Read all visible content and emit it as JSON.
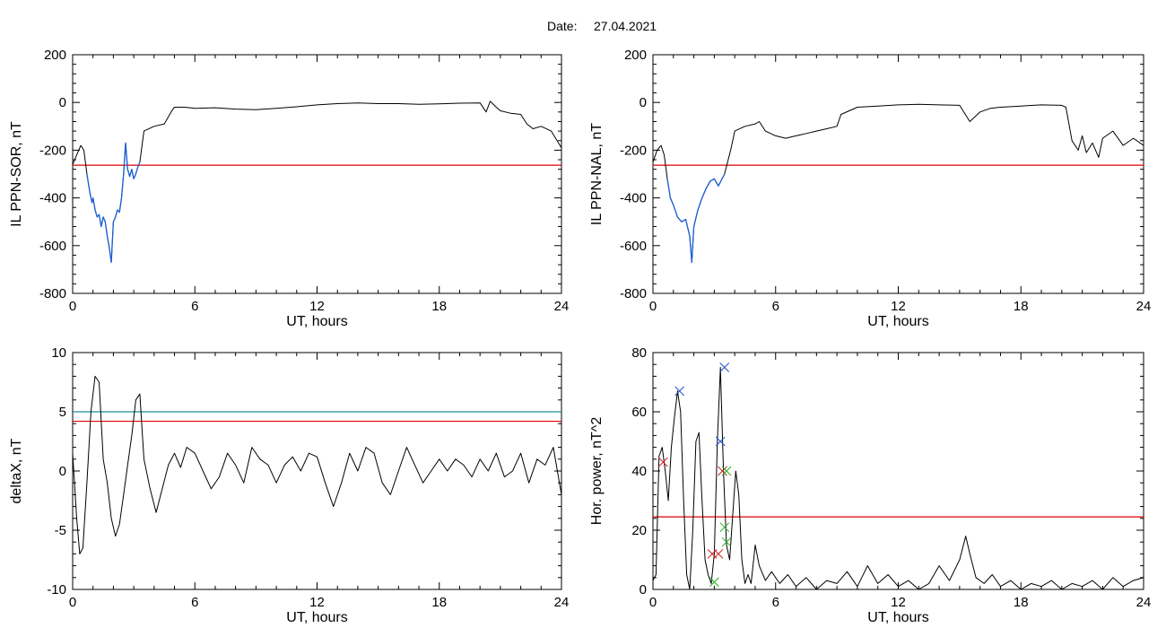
{
  "header": {
    "date_label": "Date:",
    "date_value": "27.04.2021"
  },
  "chart_data": [
    {
      "type": "line",
      "xlabel": "UT, hours",
      "ylabel": "IL PPN-SOR, nT",
      "xlim": [
        0,
        24
      ],
      "ylim": [
        -800,
        200
      ],
      "xticks": [
        0,
        6,
        12,
        18,
        24
      ],
      "yticks": [
        -800,
        -600,
        -400,
        -200,
        0,
        200
      ],
      "threshold": -263,
      "threshold_color": "#e00000",
      "highlight_color": "#1a5fd6",
      "highlight_range": [
        0.7,
        3.3
      ],
      "series": [
        {
          "x": [
            0,
            0.2,
            0.4,
            0.55,
            0.7,
            0.85,
            0.95,
            1.0,
            1.1,
            1.2,
            1.3,
            1.4,
            1.5,
            1.6,
            1.7,
            1.8,
            1.9,
            2.0,
            2.1,
            2.2,
            2.3,
            2.4,
            2.5,
            2.6,
            2.7,
            2.8,
            2.9,
            3.0,
            3.1,
            3.2,
            3.3,
            3.5,
            4.0,
            4.5,
            4.9,
            5.0,
            5.5,
            6,
            7,
            8,
            9,
            10,
            11,
            12,
            13,
            14,
            15,
            16,
            17,
            18,
            19,
            20,
            20.3,
            20.5,
            20.8,
            21,
            21.5,
            22,
            22.3,
            22.6,
            23,
            23.5,
            24
          ],
          "y": [
            -260,
            -220,
            -180,
            -200,
            -300,
            -380,
            -420,
            -400,
            -450,
            -480,
            -470,
            -520,
            -480,
            -500,
            -560,
            -610,
            -670,
            -500,
            -480,
            -450,
            -460,
            -400,
            -300,
            -170,
            -280,
            -310,
            -280,
            -320,
            -300,
            -270,
            -250,
            -120,
            -100,
            -90,
            -30,
            -20,
            -20,
            -25,
            -22,
            -28,
            -30,
            -25,
            -18,
            -10,
            -5,
            -2,
            -5,
            -5,
            -8,
            -6,
            -3,
            -2,
            -40,
            5,
            -20,
            -35,
            -45,
            -50,
            -90,
            -110,
            -100,
            -120,
            -190
          ]
        }
      ]
    },
    {
      "type": "line",
      "xlabel": "UT, hours",
      "ylabel": "IL PPN-NAL, nT",
      "xlim": [
        0,
        24
      ],
      "ylim": [
        -800,
        200
      ],
      "xticks": [
        0,
        6,
        12,
        18,
        24
      ],
      "yticks": [
        -800,
        -600,
        -400,
        -200,
        0,
        200
      ],
      "threshold": -263,
      "threshold_color": "#e00000",
      "highlight_color": "#1a5fd6",
      "highlight_range": [
        0.7,
        3.5
      ],
      "series": [
        {
          "x": [
            0,
            0.2,
            0.4,
            0.55,
            0.7,
            0.85,
            1.0,
            1.2,
            1.4,
            1.6,
            1.8,
            1.9,
            2.0,
            2.2,
            2.4,
            2.6,
            2.8,
            3.0,
            3.2,
            3.5,
            3.8,
            4.0,
            4.5,
            5.0,
            5.2,
            5.5,
            6,
            6.5,
            7,
            7.5,
            8,
            8.5,
            9,
            9.2,
            10,
            11,
            12,
            13,
            14,
            15,
            15.5,
            16,
            16.5,
            17,
            18,
            19,
            20,
            20.2,
            20.5,
            20.8,
            21,
            21.2,
            21.5,
            21.8,
            22,
            22.5,
            23,
            23.5,
            24
          ],
          "y": [
            -250,
            -200,
            -180,
            -220,
            -320,
            -400,
            -430,
            -480,
            -500,
            -490,
            -560,
            -670,
            -520,
            -450,
            -400,
            -360,
            -330,
            -320,
            -350,
            -300,
            -200,
            -120,
            -100,
            -90,
            -80,
            -120,
            -140,
            -150,
            -140,
            -130,
            -120,
            -110,
            -100,
            -50,
            -20,
            -15,
            -10,
            -8,
            -10,
            -12,
            -80,
            -40,
            -25,
            -20,
            -15,
            -10,
            -12,
            -20,
            -160,
            -200,
            -140,
            -210,
            -170,
            -230,
            -150,
            -120,
            -180,
            -150,
            -180
          ]
        }
      ]
    },
    {
      "type": "line",
      "xlabel": "UT, hours",
      "ylabel": "deltaX, nT",
      "xlim": [
        0,
        24
      ],
      "ylim": [
        -10,
        10
      ],
      "xticks": [
        0,
        6,
        12,
        18,
        24
      ],
      "yticks": [
        -10,
        -5,
        0,
        5,
        10
      ],
      "threshold": 4.2,
      "threshold_color": "#e00000",
      "threshold2": 5.0,
      "threshold2_color": "#1a9090",
      "series": [
        {
          "x": [
            0,
            0.2,
            0.35,
            0.5,
            0.7,
            0.9,
            1.1,
            1.3,
            1.5,
            1.7,
            1.9,
            2.1,
            2.3,
            2.5,
            2.7,
            2.9,
            3.1,
            3.3,
            3.5,
            3.8,
            4.1,
            4.4,
            4.7,
            5.0,
            5.3,
            5.6,
            6.0,
            6.4,
            6.8,
            7.2,
            7.6,
            8.0,
            8.4,
            8.8,
            9.2,
            9.6,
            10.0,
            10.4,
            10.8,
            11.2,
            11.6,
            12.0,
            12.4,
            12.8,
            13.2,
            13.6,
            14.0,
            14.4,
            14.8,
            15.2,
            15.6,
            16.0,
            16.4,
            16.8,
            17.2,
            17.6,
            18.0,
            18.4,
            18.8,
            19.2,
            19.6,
            20.0,
            20.4,
            20.8,
            21.2,
            21.6,
            22.0,
            22.4,
            22.8,
            23.2,
            23.6,
            24
          ],
          "y": [
            1.5,
            -4,
            -7,
            -6.5,
            -1,
            5,
            8,
            7.5,
            1,
            -1,
            -4,
            -5.5,
            -4.5,
            -2,
            0.5,
            3,
            6,
            6.5,
            1,
            -1.5,
            -3.5,
            -1.5,
            0.5,
            1.5,
            0.3,
            2,
            1.5,
            0,
            -1.5,
            -0.5,
            1.5,
            0.5,
            -1,
            2,
            1,
            0.5,
            -1,
            0.5,
            1.2,
            0,
            1.5,
            1.2,
            -1,
            -3,
            -1,
            1.5,
            0,
            2,
            1.5,
            -1,
            -2,
            0,
            2,
            0.5,
            -1,
            0,
            1,
            0,
            1,
            0.5,
            -0.5,
            1,
            0,
            1.5,
            -0.5,
            0,
            1.5,
            -1,
            1,
            0.5,
            2,
            -2
          ]
        }
      ]
    },
    {
      "type": "line",
      "xlabel": "UT, hours",
      "ylabel": "Hor. power, nT^2",
      "xlim": [
        0,
        24
      ],
      "ylim": [
        0,
        80
      ],
      "xticks": [
        0,
        6,
        12,
        18,
        24
      ],
      "yticks": [
        0,
        20,
        40,
        60,
        80
      ],
      "threshold": 24.5,
      "threshold_color": "#e00000",
      "series": [
        {
          "x": [
            0,
            0.15,
            0.3,
            0.45,
            0.6,
            0.75,
            0.9,
            1.05,
            1.2,
            1.35,
            1.5,
            1.65,
            1.8,
            1.95,
            2.1,
            2.25,
            2.4,
            2.55,
            2.7,
            2.85,
            3.0,
            3.15,
            3.3,
            3.45,
            3.6,
            3.75,
            3.9,
            4.05,
            4.2,
            4.35,
            4.5,
            4.65,
            4.8,
            5.0,
            5.2,
            5.5,
            5.8,
            6.2,
            6.6,
            7,
            7.5,
            8,
            8.5,
            9,
            9.5,
            10,
            10.5,
            11,
            11.5,
            12,
            12.5,
            13,
            13.5,
            14,
            14.5,
            15,
            15.3,
            15.5,
            15.8,
            16.2,
            16.6,
            17,
            17.5,
            18,
            18.5,
            19,
            19.5,
            20,
            20.5,
            21,
            21.5,
            22,
            22.5,
            23,
            23.5,
            24
          ],
          "y": [
            3,
            5,
            45,
            48,
            40,
            30,
            48,
            58,
            67,
            60,
            30,
            5,
            0,
            20,
            50,
            53,
            30,
            10,
            5,
            2,
            12,
            50,
            75,
            40,
            15,
            10,
            25,
            40,
            32,
            10,
            2,
            5,
            2,
            15,
            8,
            3,
            6,
            2,
            5,
            1,
            4,
            0,
            3,
            2,
            6,
            1,
            8,
            2,
            5,
            1,
            3,
            0,
            2,
            8,
            3,
            10,
            18,
            12,
            4,
            2,
            5,
            1,
            3,
            0,
            2,
            1,
            3,
            0,
            2,
            1,
            3,
            0,
            4,
            1,
            3,
            4
          ]
        }
      ],
      "markers": [
        {
          "x": 0.5,
          "y": 43,
          "color": "#d02020"
        },
        {
          "x": 1.3,
          "y": 67,
          "color": "#2050d0"
        },
        {
          "x": 2.9,
          "y": 12,
          "color": "#d02020"
        },
        {
          "x": 3.2,
          "y": 12,
          "color": "#d02020"
        },
        {
          "x": 3.0,
          "y": 2.5,
          "color": "#20b020"
        },
        {
          "x": 3.3,
          "y": 50,
          "color": "#2050d0"
        },
        {
          "x": 3.5,
          "y": 75,
          "color": "#2050d0"
        },
        {
          "x": 3.4,
          "y": 40,
          "color": "#d02020"
        },
        {
          "x": 3.6,
          "y": 40,
          "color": "#20b020"
        },
        {
          "x": 3.5,
          "y": 21,
          "color": "#20b020"
        },
        {
          "x": 3.6,
          "y": 16,
          "color": "#20b020"
        }
      ]
    }
  ]
}
